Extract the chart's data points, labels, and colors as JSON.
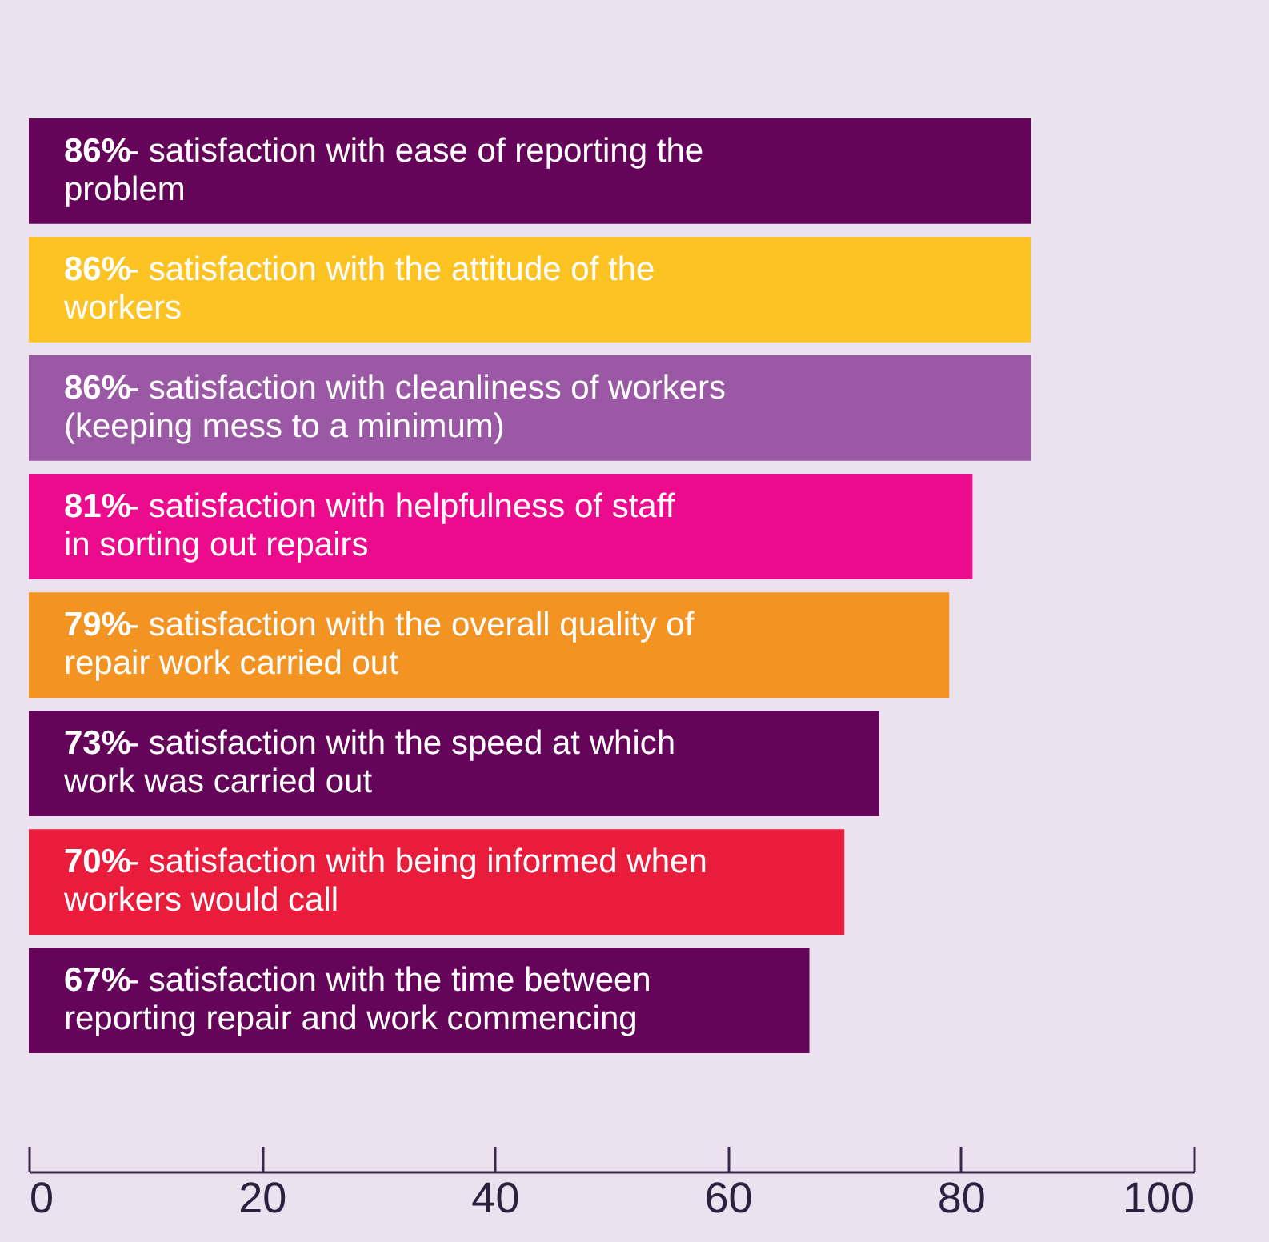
{
  "chart_data": {
    "type": "bar",
    "orientation": "horizontal",
    "categories": [
      "- satisfaction with ease of reporting the problem",
      "- satisfaction with the attitude of the workers",
      "- satisfaction with cleanliness of workers (keeping mess to a minimum)",
      "- satisfaction with helpfulness of staff in sorting out repairs",
      "- satisfaction with the overall quality of repair work carried out",
      "- satisfaction with the speed at which work was carried out",
      "- satisfaction with being informed when workers would call",
      "- satisfaction with the time between reporting repair and work commencing"
    ],
    "values": [
      86,
      86,
      86,
      81,
      79,
      73,
      70,
      67
    ],
    "value_labels": [
      "86%",
      "86%",
      "86%",
      "81%",
      "79%",
      "73%",
      "70%",
      "67%"
    ],
    "colors": [
      "#650559",
      "#fcc322",
      "#9b59a5",
      "#ec0b8c",
      "#f39322",
      "#650559",
      "#e91c3c",
      "#650559"
    ],
    "xlim": [
      0,
      100
    ],
    "xticks": [
      0,
      20,
      40,
      60,
      80,
      100
    ],
    "grid": false
  }
}
